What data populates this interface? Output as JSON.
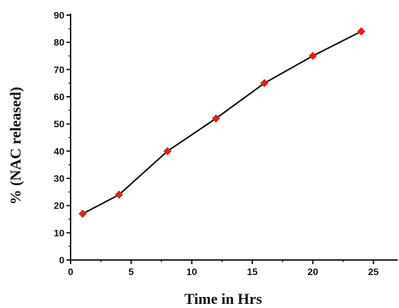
{
  "chart_data": {
    "type": "line",
    "xlabel": "Time in Hrs",
    "ylabel": "% (NAC released)",
    "xlim": [
      0,
      27
    ],
    "ylim": [
      0,
      90
    ],
    "x_ticks": [
      0,
      5,
      10,
      15,
      20,
      25
    ],
    "y_ticks": [
      0,
      10,
      20,
      30,
      40,
      50,
      60,
      70,
      80,
      90
    ],
    "grid": false,
    "legend": "none",
    "series": [
      {
        "x": [
          1,
          4,
          8,
          12,
          16,
          20,
          24
        ],
        "y": [
          17,
          24,
          40,
          52,
          65,
          75,
          84
        ]
      }
    ],
    "colors": {
      "line": "#111111",
      "marker": "#e02020",
      "axis": "#111111"
    }
  }
}
